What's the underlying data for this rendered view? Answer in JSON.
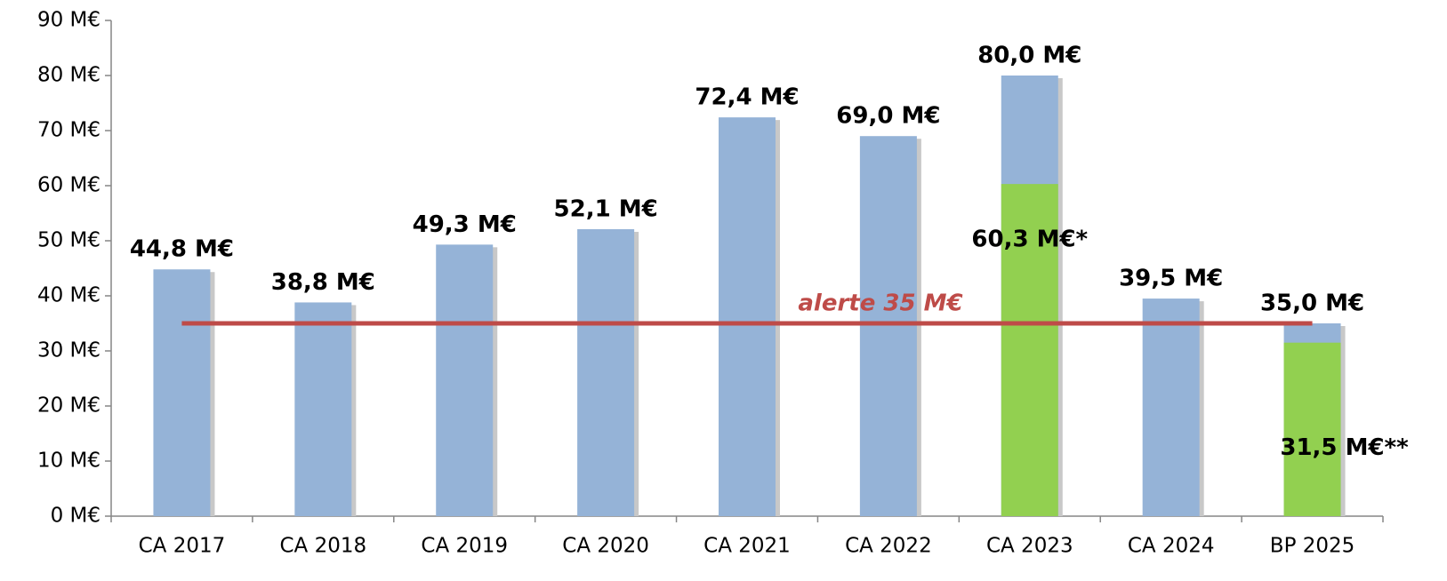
{
  "chart_data": {
    "type": "bar",
    "categories": [
      "CA 2017",
      "CA 2018",
      "CA 2019",
      "CA 2020",
      "CA 2021",
      "CA 2022",
      "CA 2023",
      "CA 2024",
      "BP 2025"
    ],
    "values": [
      44.8,
      38.8,
      49.3,
      52.1,
      72.4,
      69.0,
      80.0,
      39.5,
      35.0
    ],
    "value_labels": [
      "44,8 M€",
      "38,8 M€",
      "49,3 M€",
      "52,1 M€",
      "72,4 M€",
      "69,0 M€",
      "80,0 M€",
      "39,5 M€",
      "35,0 M€"
    ],
    "color": "#95b3d7",
    "overlay": {
      "values": [
        null,
        null,
        null,
        null,
        null,
        null,
        60.3,
        null,
        31.5
      ],
      "value_labels": [
        null,
        null,
        null,
        null,
        null,
        null,
        "60,3 M€*",
        null,
        "31,5 M€**"
      ],
      "color": "#92d050"
    },
    "threshold": {
      "value": 35,
      "label": "alerte 35 M€",
      "color": "#be4b48"
    },
    "ylim": [
      0,
      90
    ],
    "yticks": [
      {
        "value": 0,
        "label": "0 M€"
      },
      {
        "value": 10,
        "label": "10 M€"
      },
      {
        "value": 20,
        "label": "20 M€"
      },
      {
        "value": 30,
        "label": "30 M€"
      },
      {
        "value": 40,
        "label": "40 M€"
      },
      {
        "value": 50,
        "label": "50 M€"
      },
      {
        "value": 60,
        "label": "60 M€"
      },
      {
        "value": 70,
        "label": "70 M€"
      },
      {
        "value": 80,
        "label": "80 M€"
      },
      {
        "value": 90,
        "label": "90 M€"
      }
    ]
  }
}
